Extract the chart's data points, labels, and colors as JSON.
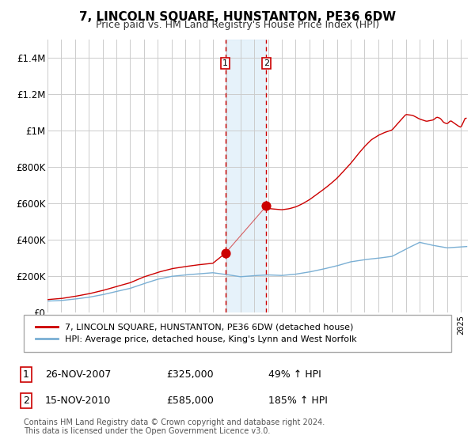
{
  "title": "7, LINCOLN SQUARE, HUNSTANTON, PE36 6DW",
  "subtitle": "Price paid vs. HM Land Registry's House Price Index (HPI)",
  "legend_line1": "7, LINCOLN SQUARE, HUNSTANTON, PE36 6DW (detached house)",
  "legend_line2": "HPI: Average price, detached house, King's Lynn and West Norfolk",
  "transaction1_date": "26-NOV-2007",
  "transaction1_price": "£325,000",
  "transaction1_hpi_pct": "49% ↑ HPI",
  "transaction1_year": 2007.9,
  "transaction1_price_val": 325000,
  "transaction2_date": "15-NOV-2010",
  "transaction2_price": "£585,000",
  "transaction2_hpi_pct": "185% ↑ HPI",
  "transaction2_year": 2010.875,
  "transaction2_price_val": 585000,
  "footer1": "Contains HM Land Registry data © Crown copyright and database right 2024.",
  "footer2": "This data is licensed under the Open Government Licence v3.0.",
  "red_color": "#cc0000",
  "blue_color": "#7aafd4",
  "background_color": "#ffffff",
  "grid_color": "#cccccc",
  "ylim": [
    0,
    1500000
  ],
  "xlim": [
    1995,
    2025.5
  ],
  "yticks": [
    0,
    200000,
    400000,
    600000,
    800000,
    1000000,
    1200000,
    1400000
  ],
  "ytick_labels": [
    "£0",
    "£200K",
    "£400K",
    "£600K",
    "£800K",
    "£1M",
    "£1.2M",
    "£1.4M"
  ],
  "xticks": [
    1995,
    1996,
    1997,
    1998,
    1999,
    2000,
    2001,
    2002,
    2003,
    2004,
    2005,
    2006,
    2007,
    2008,
    2009,
    2010,
    2011,
    2012,
    2013,
    2014,
    2015,
    2016,
    2017,
    2018,
    2019,
    2020,
    2021,
    2022,
    2023,
    2024,
    2025
  ]
}
